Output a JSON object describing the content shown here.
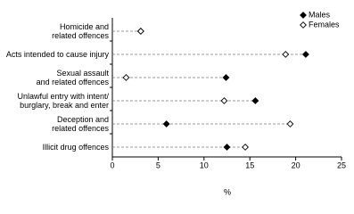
{
  "chart_data": {
    "type": "dot",
    "categories": [
      "Homicide and\nrelated offences",
      "Acts intended to cause injury",
      "Sexual assault\nand related offences",
      "Unlawful entry with intent/\nburglary, break and enter",
      "Deception and\nrelated offences",
      "Illicit drug offences"
    ],
    "series": [
      {
        "name": "Males",
        "color": "#000000",
        "marker": "filled",
        "values": [
          3.1,
          21.1,
          12.4,
          15.6,
          5.9,
          12.5
        ]
      },
      {
        "name": "Females",
        "color": "#000000",
        "marker": "open",
        "values": [
          3.1,
          18.9,
          1.5,
          12.2,
          19.4,
          14.5
        ]
      }
    ],
    "xlabel": "%",
    "xlim": [
      0,
      25
    ],
    "xticks": [
      0,
      5,
      10,
      15,
      20,
      25
    ],
    "legend": "top-right"
  }
}
